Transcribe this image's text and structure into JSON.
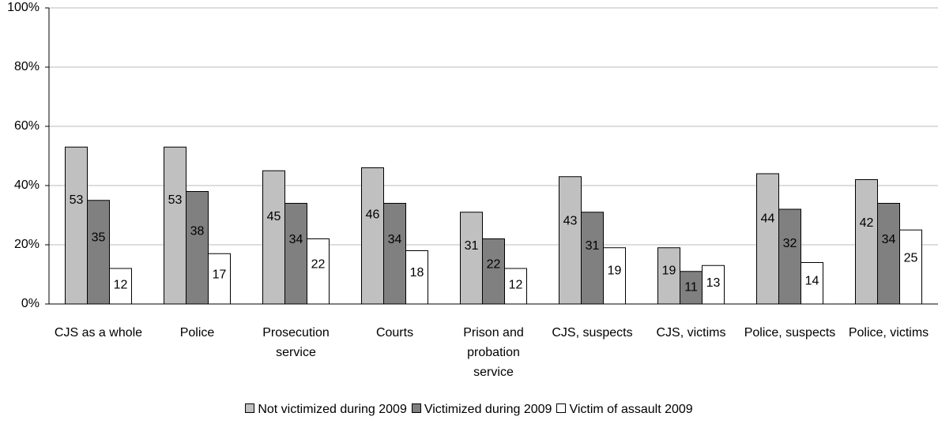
{
  "chart_data": {
    "type": "bar",
    "categories": [
      "CJS as a whole",
      "Police",
      "Prosecution service",
      "Courts",
      "Prison and probation service",
      "CJS, suspects",
      "CJS, victims",
      "Police, suspects",
      "Police, victims"
    ],
    "series": [
      {
        "name": "Not victimized during 2009",
        "color": "#c0c0c0",
        "values": [
          53,
          53,
          45,
          46,
          31,
          43,
          19,
          44,
          42
        ]
      },
      {
        "name": "Victimized during 2009",
        "color": "#808080",
        "values": [
          35,
          38,
          34,
          34,
          22,
          31,
          11,
          32,
          34
        ]
      },
      {
        "name": "Victim of assault 2009",
        "color": "#ffffff",
        "values": [
          12,
          17,
          22,
          18,
          12,
          19,
          13,
          14,
          25
        ]
      }
    ],
    "ylim": [
      0,
      100
    ],
    "yticks": [
      {
        "value": 0,
        "label": "0%"
      },
      {
        "value": 20,
        "label": "20%"
      },
      {
        "value": 40,
        "label": "40%"
      },
      {
        "value": 60,
        "label": "60%"
      },
      {
        "value": 80,
        "label": "80%"
      },
      {
        "value": 100,
        "label": "100%"
      }
    ],
    "grid": true,
    "legend": "bottom"
  }
}
